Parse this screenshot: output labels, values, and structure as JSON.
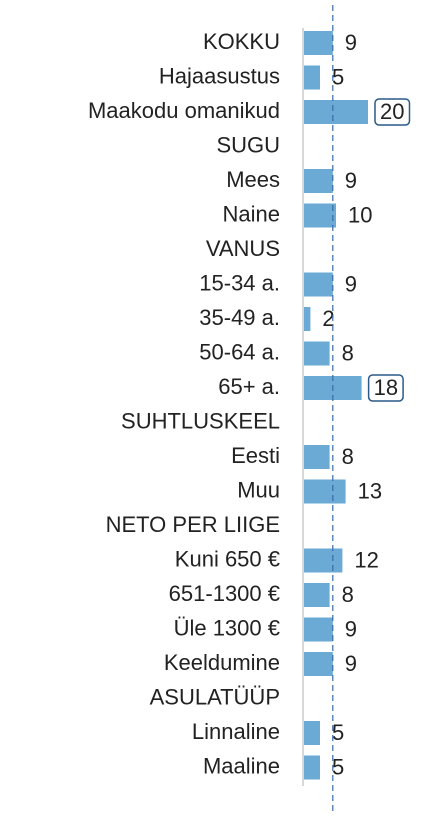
{
  "chart_data": {
    "type": "barh",
    "categories": [
      "KOKKU",
      "Hajaasustus",
      "Maakodu omanikud",
      "SUGU",
      "Mees",
      "Naine",
      "VANUS",
      "15-34 a.",
      "35-49 a.",
      "50-64 a.",
      "65+ a.",
      "SUHTLUSKEEL",
      "Eesti",
      "Muu",
      "NETO PER LIIGE",
      "Kuni 650 €",
      "651-1300 €",
      "Üle 1300 €",
      "Keeldumine",
      "ASULATÜÜP",
      "Linnaline",
      "Maaline"
    ],
    "values": [
      9,
      5,
      20,
      null,
      9,
      10,
      null,
      9,
      2,
      8,
      18,
      null,
      8,
      13,
      null,
      12,
      8,
      9,
      9,
      null,
      5,
      5
    ],
    "highlight": [
      false,
      false,
      true,
      false,
      false,
      false,
      false,
      false,
      false,
      false,
      true,
      false,
      false,
      false,
      false,
      false,
      false,
      false,
      false,
      false,
      false,
      false
    ],
    "color": "#6aaad4",
    "xlim": [
      0,
      20
    ],
    "reference_line": 9
  }
}
